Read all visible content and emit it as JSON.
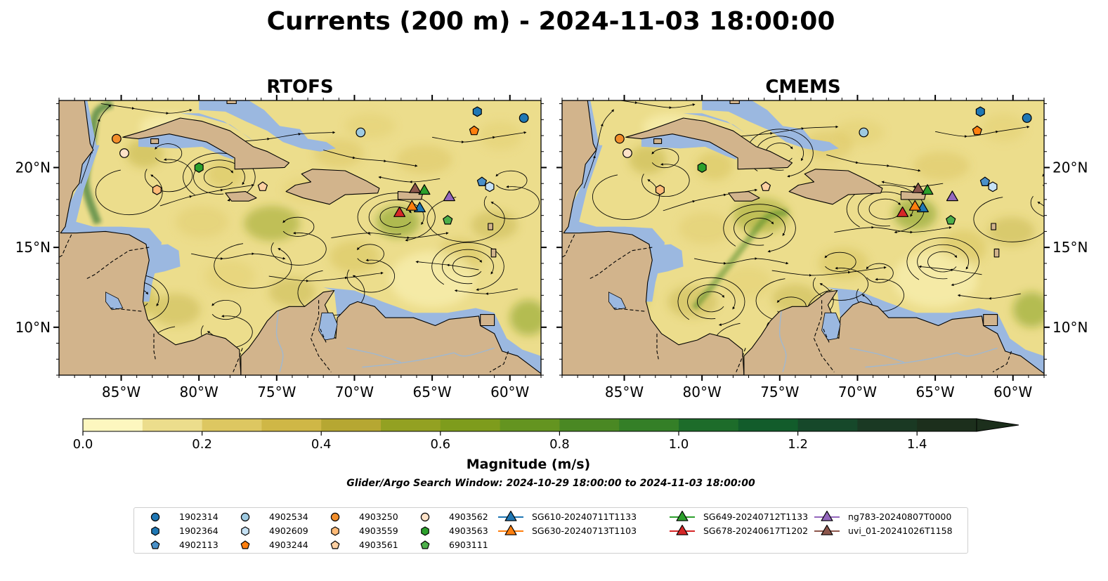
{
  "title": "Currents (200 m) - 2024-11-03 18:00:00",
  "chart_data": [
    {
      "type": "heatmap",
      "title": "RTOFS",
      "quantity": "current magnitude with streamlines",
      "x_ticks": [
        "85°W",
        "80°W",
        "75°W",
        "70°W",
        "65°W",
        "60°W"
      ],
      "x_tick_values": [
        -85,
        -80,
        -75,
        -70,
        -65,
        -60
      ],
      "y_ticks": [
        "10°N",
        "15°N",
        "20°N"
      ],
      "y_tick_values": [
        10,
        15,
        20
      ],
      "xlim": [
        -89,
        -58
      ],
      "ylim": [
        7,
        24.2
      ],
      "y_tick_side": "left",
      "eddies": [
        [
          -83.6,
          20.9
        ],
        [
          -78.7,
          19.4
        ],
        [
          -75.5,
          16.3
        ],
        [
          -84.1,
          11.8
        ],
        [
          -80,
          11.1
        ],
        [
          -67.3,
          16.9
        ],
        [
          -70.6,
          14.6
        ],
        [
          -62.7,
          13.8
        ],
        [
          -61.8,
          19.2
        ]
      ]
    },
    {
      "type": "heatmap",
      "title": "CMEMS",
      "quantity": "current magnitude with streamlines",
      "x_ticks": [
        "85°W",
        "80°W",
        "75°W",
        "70°W",
        "65°W",
        "60°W"
      ],
      "x_tick_values": [
        -85,
        -80,
        -75,
        -70,
        -65,
        -60
      ],
      "y_ticks": [
        "10°N",
        "15°N",
        "20°N"
      ],
      "y_tick_values": [
        10,
        15,
        20
      ],
      "xlim": [
        -89,
        -58
      ],
      "ylim": [
        7,
        24.2
      ],
      "y_tick_side": "right",
      "eddies": [
        [
          -84,
          20.6
        ],
        [
          -76.3,
          16.2
        ],
        [
          -73,
          14.1
        ],
        [
          -79.4,
          11.6
        ],
        [
          -76,
          11.3
        ],
        [
          -68.2,
          17.4
        ],
        [
          -70.2,
          13.4
        ],
        [
          -64.5,
          14.1
        ],
        [
          -59,
          19.2
        ],
        [
          -75,
          20.9
        ]
      ]
    }
  ],
  "colorbar": {
    "label": "Magnitude (m/s)",
    "ticks": [
      "0.0",
      "0.2",
      "0.4",
      "0.6",
      "0.8",
      "1.0",
      "1.2",
      "1.4"
    ],
    "tick_values": [
      0,
      0.2,
      0.4,
      0.6,
      0.8,
      1.0,
      1.2,
      1.4
    ],
    "min": 0,
    "max": 1.5,
    "extend": "max",
    "colors": [
      "#fdf7bf",
      "#ecdd8c",
      "#ddc761",
      "#cfb746",
      "#b6a732",
      "#93a122",
      "#7e9c1c",
      "#649420",
      "#4a8823",
      "#347f27",
      "#1d6c2a",
      "#125c2b",
      "#16482a",
      "#1a3923",
      "#1c2f1c"
    ]
  },
  "window_text": "Glider/Argo Search Window: 2024-10-29 18:00:00 to 2024-11-03 18:00:00",
  "platforms": [
    {
      "id": "1902314",
      "lon": -59.1,
      "lat": 23.1,
      "marker": "circle",
      "color": "#1f77b4"
    },
    {
      "id": "1902364",
      "lon": -62.1,
      "lat": 23.5,
      "marker": "hexagon",
      "color": "#1f77b4"
    },
    {
      "id": "4902113",
      "lon": -61.8,
      "lat": 19.1,
      "marker": "pentagon",
      "color": "#4a90c8"
    },
    {
      "id": "4902534",
      "lon": -69.6,
      "lat": 22.2,
      "marker": "circle",
      "color": "#9ecae1"
    },
    {
      "id": "4902609",
      "lon": -61.3,
      "lat": 18.8,
      "marker": "hexagon",
      "color": "#c6e2f5"
    },
    {
      "id": "4903244",
      "lon": -62.3,
      "lat": 22.3,
      "marker": "pentagon",
      "color": "#ff7f0e"
    },
    {
      "id": "4903250",
      "lon": -85.3,
      "lat": 21.8,
      "marker": "circle",
      "color": "#f28e2b"
    },
    {
      "id": "4903559",
      "lon": -82.7,
      "lat": 18.6,
      "marker": "hexagon",
      "color": "#ffbb78"
    },
    {
      "id": "4903561",
      "lon": -75.9,
      "lat": 18.8,
      "marker": "pentagon",
      "color": "#fdd0a2"
    },
    {
      "id": "4903562",
      "lon": -84.8,
      "lat": 20.9,
      "marker": "circle",
      "color": "#fde2c8"
    },
    {
      "id": "4903563",
      "lon": -80,
      "lat": 20,
      "marker": "hexagon",
      "color": "#2ca02c"
    },
    {
      "id": "6903111",
      "lon": -64,
      "lat": 16.7,
      "marker": "pentagon",
      "color": "#4daf4a"
    },
    {
      "id": "SG610-20240711T1133",
      "lon": -65.8,
      "lat": 17.5,
      "marker": "triangle",
      "color": "#1f77b4"
    },
    {
      "id": "SG630-20240713T1103",
      "lon": -66.3,
      "lat": 17.6,
      "marker": "triangle",
      "color": "#ff7f0e"
    },
    {
      "id": "SG649-20240712T1133",
      "lon": -65.5,
      "lat": 18.6,
      "marker": "triangle",
      "color": "#2ca02c"
    },
    {
      "id": "SG678-20240617T1202",
      "lon": -67.1,
      "lat": 17.2,
      "marker": "triangle",
      "color": "#d62728"
    },
    {
      "id": "ng783-20240807T0000",
      "lon": -63.9,
      "lat": 18.2,
      "marker": "triangle",
      "color": "#9467bd"
    },
    {
      "id": "uvi_01-20241026T1158",
      "lon": -66.1,
      "lat": 18.7,
      "marker": "triangle",
      "color": "#8c564b"
    }
  ],
  "land_color": "#d2b48c",
  "water_color": "#9bb8e0",
  "country_border_color": "#000000",
  "river_color": "#a0b8d0"
}
